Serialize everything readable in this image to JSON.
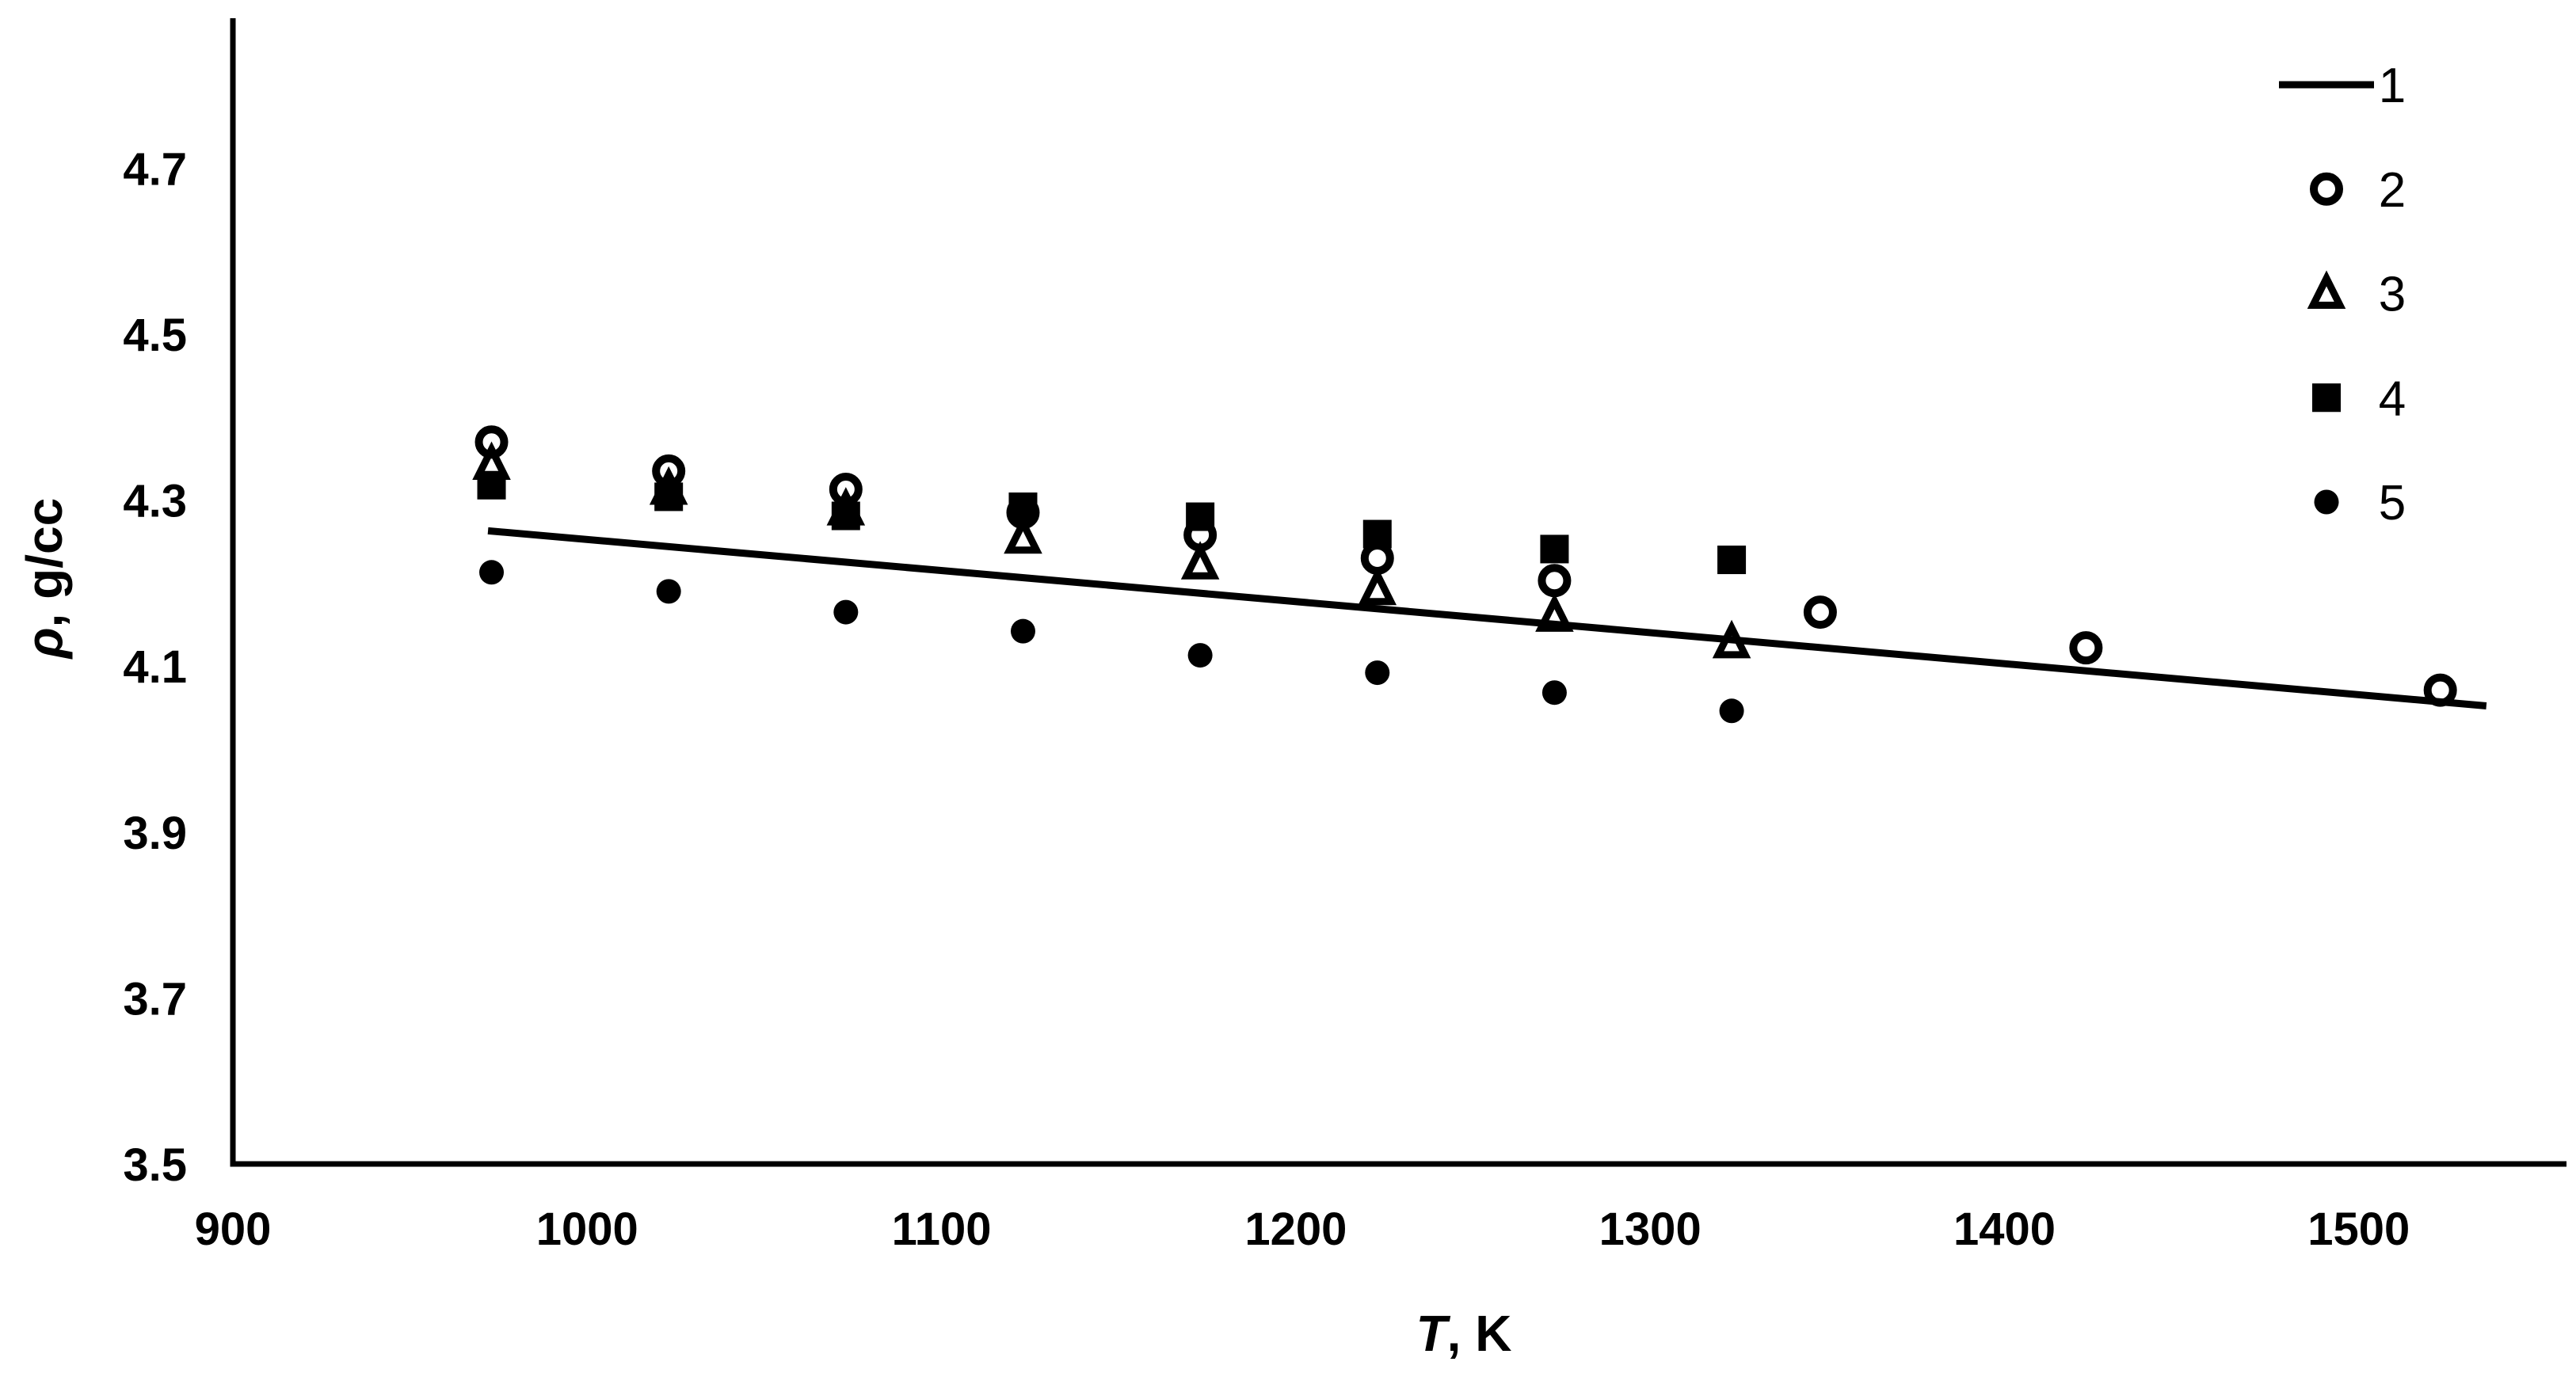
{
  "figure": {
    "background": "#ffffff",
    "ink": "#000000"
  },
  "chart_data": {
    "type": "scatter",
    "title": "",
    "xlabel": {
      "variable": "T",
      "unit": ", K"
    },
    "ylabel": {
      "variable": "ρ",
      "unit": ", g/cc"
    },
    "x_ticks": [
      "900",
      "1000",
      "1100",
      "1200",
      "1300",
      "1400",
      "1500"
    ],
    "y_ticks": [
      "4.7",
      "4.5",
      "4.3",
      "4.1",
      "3.9",
      "3.7",
      "3.5"
    ],
    "xlim": [
      900,
      1559
    ],
    "ylim": [
      3.5,
      4.88
    ],
    "grid": false,
    "legend_position": "top-right",
    "series": [
      {
        "label": "1",
        "type": "line",
        "marker": "line",
        "points": [
          [
            972,
            4.263
          ],
          [
            1536,
            4.052
          ]
        ]
      },
      {
        "label": "2",
        "type": "scatter",
        "marker": "open-circle",
        "points": [
          [
            973,
            4.37
          ],
          [
            1023,
            4.335
          ],
          [
            1073,
            4.313
          ],
          [
            1123,
            4.285
          ],
          [
            1173,
            4.258
          ],
          [
            1223,
            4.23
          ],
          [
            1273,
            4.203
          ],
          [
            1348,
            4.165
          ],
          [
            1423,
            4.122
          ],
          [
            1523,
            4.071
          ]
        ]
      },
      {
        "label": "3",
        "type": "scatter",
        "marker": "open-triangle",
        "points": [
          [
            973,
            4.343
          ],
          [
            1023,
            4.313
          ],
          [
            1073,
            4.288
          ],
          [
            1123,
            4.254
          ],
          [
            1173,
            4.223
          ],
          [
            1223,
            4.192
          ],
          [
            1273,
            4.16
          ],
          [
            1323,
            4.128
          ]
        ]
      },
      {
        "label": "4",
        "type": "scatter",
        "marker": "filled-square",
        "points": [
          [
            973,
            4.318
          ],
          [
            1023,
            4.304
          ],
          [
            1073,
            4.281
          ],
          [
            1123,
            4.292
          ],
          [
            1173,
            4.28
          ],
          [
            1223,
            4.259
          ],
          [
            1273,
            4.241
          ],
          [
            1323,
            4.228
          ]
        ]
      },
      {
        "label": "5",
        "type": "scatter",
        "marker": "filled-circle",
        "points": [
          [
            973,
            4.213
          ],
          [
            1023,
            4.19
          ],
          [
            1073,
            4.165
          ],
          [
            1123,
            4.142
          ],
          [
            1173,
            4.113
          ],
          [
            1223,
            4.092
          ],
          [
            1273,
            4.068
          ],
          [
            1323,
            4.046
          ]
        ]
      }
    ]
  }
}
